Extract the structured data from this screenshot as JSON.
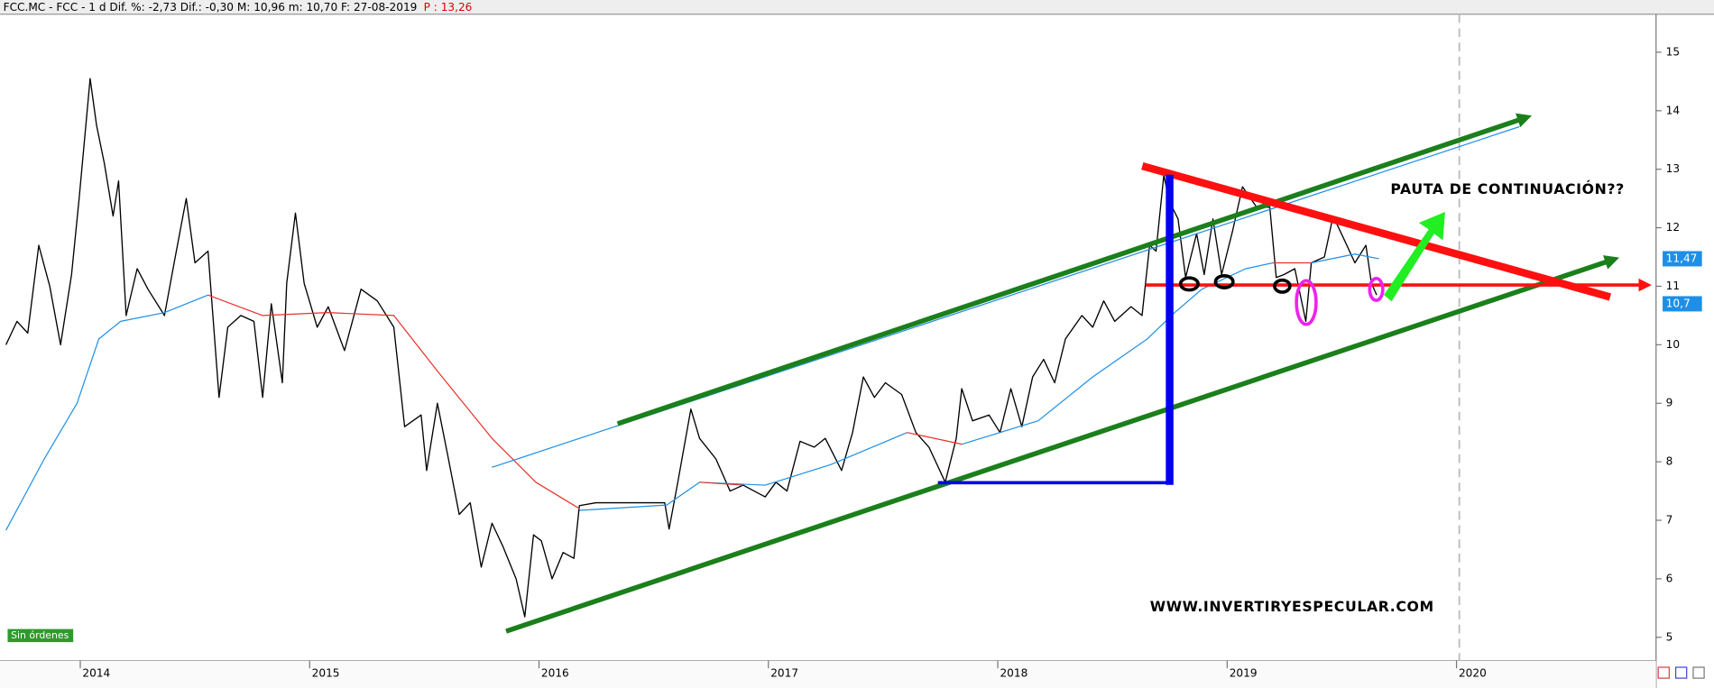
{
  "header": {
    "info": "FCC.MC - FCC -  1 d Dif. %: -2,73 Dif.: -0,30 M: 10,96 m: 10,70 F: 27-08-2019",
    "price": "P : 13,26"
  },
  "chart_data": {
    "type": "line",
    "x": [
      2013.676,
      2013.724,
      2013.771,
      2013.819,
      2013.867,
      2013.914,
      2013.962,
      2013.995,
      2014.043,
      2014.071,
      2014.105,
      2014.143,
      2014.167,
      2014.2,
      2014.248,
      2014.295,
      2014.367,
      2014.414,
      2014.462,
      2014.5,
      2014.557,
      2014.605,
      2014.643,
      2014.7,
      2014.757,
      2014.795,
      2014.833,
      2014.881,
      2014.9,
      2014.938,
      2014.976,
      2015.033,
      2015.081,
      2015.152,
      2015.224,
      2015.295,
      2015.367,
      2015.414,
      2015.486,
      2015.51,
      2015.557,
      2015.605,
      2015.652,
      2015.7,
      2015.748,
      2015.795,
      2015.843,
      2015.9,
      2015.938,
      2015.976,
      2016.01,
      2016.057,
      2016.105,
      2016.152,
      2016.176,
      2016.248,
      2016.414,
      2016.548,
      2016.567,
      2016.605,
      2016.662,
      2016.7,
      2016.771,
      2016.833,
      2016.89,
      2016.986,
      2017.033,
      2017.081,
      2017.138,
      2017.2,
      2017.248,
      2017.319,
      2017.367,
      2017.414,
      2017.462,
      2017.51,
      2017.581,
      2017.643,
      2017.7,
      2017.771,
      2017.819,
      2017.843,
      2017.89,
      2017.962,
      2018.01,
      2018.057,
      2018.105,
      2018.152,
      2018.2,
      2018.248,
      2018.295,
      2018.367,
      2018.414,
      2018.462,
      2018.51,
      2018.581,
      2018.629,
      2018.662,
      2018.69,
      2018.724,
      2018.748,
      2018.786,
      2018.819,
      2018.867,
      2018.9,
      2018.938,
      2018.976,
      2019.024,
      2019.067,
      2019.129,
      2019.186,
      2019.214,
      2019.248,
      2019.295,
      2019.343,
      2019.367,
      2019.424,
      2019.462,
      2019.51,
      2019.557,
      2019.605,
      2019.629,
      2019.652
    ],
    "series": [
      {
        "color": "#000000",
        "values": [
          10.0,
          10.4,
          10.2,
          11.7,
          11.0,
          10.0,
          11.2,
          12.5,
          14.55,
          13.75,
          13.1,
          12.2,
          12.8,
          10.5,
          11.3,
          10.95,
          10.5,
          11.5,
          12.5,
          11.4,
          11.6,
          9.1,
          10.3,
          10.5,
          10.4,
          9.1,
          10.7,
          9.35,
          11.05,
          12.25,
          11.05,
          10.3,
          10.65,
          9.9,
          10.95,
          10.75,
          10.3,
          8.6,
          8.8,
          7.85,
          9.0,
          8.05,
          7.1,
          7.3,
          6.2,
          6.95,
          6.55,
          6.0,
          5.35,
          6.75,
          6.65,
          6.0,
          6.45,
          6.35,
          7.25,
          7.3,
          7.3,
          7.3,
          6.85,
          7.65,
          8.9,
          8.4,
          8.05,
          7.5,
          7.6,
          7.4,
          7.65,
          7.5,
          8.35,
          8.25,
          8.4,
          7.85,
          8.5,
          9.45,
          9.1,
          9.35,
          9.15,
          8.5,
          8.25,
          7.65,
          8.4,
          9.25,
          8.7,
          8.8,
          8.5,
          9.25,
          8.6,
          9.45,
          9.75,
          9.35,
          10.1,
          10.5,
          10.3,
          10.75,
          10.4,
          10.65,
          10.5,
          11.7,
          11.6,
          12.9,
          12.45,
          12.15,
          11.15,
          11.9,
          11.2,
          12.15,
          11.2,
          11.95,
          12.7,
          12.35,
          12.35,
          11.15,
          11.2,
          11.3,
          10.4,
          11.4,
          11.5,
          12.2,
          11.8,
          11.4,
          11.7,
          11.05,
          10.85
        ]
      },
      {
        "color": "#1e8fe6",
        "x": [
          2013.676,
          2013.843,
          2013.986,
          2014.081,
          2014.176,
          2014.367,
          2014.557,
          2015.081,
          2016.176,
          2016.557,
          2016.7,
          2016.986,
          2017.271,
          2017.605,
          2017.748,
          2017.843,
          2018.176,
          2018.414,
          2018.652,
          2018.771,
          2018.89,
          2019.081,
          2019.2,
          2019.295,
          2019.367,
          2019.557,
          2019.662
        ],
        "values": [
          6.83,
          8.05,
          9.0,
          10.1,
          10.4,
          10.55,
          10.85,
          null,
          7.17,
          7.26,
          7.65,
          7.6,
          7.95,
          8.5,
          null,
          8.3,
          8.7,
          9.45,
          10.1,
          10.55,
          10.95,
          11.3,
          11.4,
          null,
          11.4,
          11.55,
          11.47
        ]
      },
      {
        "color": "#e8312a",
        "x": [
          2014.557,
          2014.795,
          2015.081,
          2015.367,
          2015.557,
          2015.795,
          2015.986,
          2016.176,
          2016.51,
          2016.7,
          2016.89,
          2017.271,
          2017.605,
          2017.843,
          2018.414,
          2019.2,
          2019.367
        ],
        "values": [
          10.85,
          10.5,
          10.55,
          10.5,
          9.55,
          8.4,
          7.65,
          7.2,
          null,
          7.65,
          7.6,
          null,
          8.5,
          8.3,
          null,
          11.4,
          11.4
        ]
      }
    ],
    "xlim": [
      2013.65,
      2020.87
    ],
    "xticks": [
      2014,
      2015,
      2016,
      2017,
      2018,
      2019,
      2020
    ],
    "ylim": [
      4.6,
      15.65
    ],
    "yticks": [
      5,
      6,
      7,
      8,
      9,
      10,
      11,
      12,
      13,
      14,
      15
    ],
    "price_tags": [
      {
        "value": 11.47,
        "label": "11,47"
      },
      {
        "value": 10.7,
        "label": "10,7"
      }
    ],
    "annotations": [
      "PAUTA DE CONTINUACIÓN??",
      "WWW.INVERTIRYESPECULAR.COM"
    ],
    "badge": "Sin órdenes"
  }
}
